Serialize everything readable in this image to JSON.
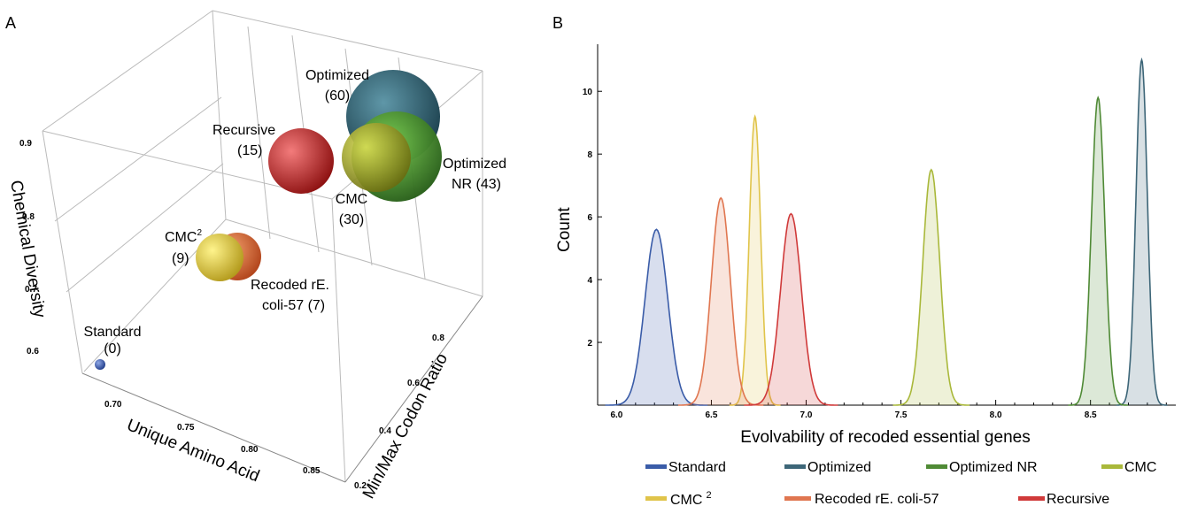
{
  "chart_data": [
    {
      "panel": "A",
      "type": "scatter",
      "subtype": "3d-bubble",
      "xlabel": "Unique Amino Acid",
      "ylabel": "Min/Max Codon Ratio",
      "zlabel": "Chemical Diversity",
      "x_ticks": [
        "0.70",
        "0.75",
        "0.80",
        "0.85"
      ],
      "y_ticks": [
        "0.2",
        "0.4",
        "0.6",
        "0.8"
      ],
      "z_ticks": [
        "0.6",
        "0.7",
        "0.8",
        "0.9"
      ],
      "points": [
        {
          "label": "Standard (0)",
          "label_lines": [
            "Standard",
            "(0)"
          ],
          "value": 0,
          "color": "#3355aa"
        },
        {
          "label": "CMC2 (9)",
          "label_lines": [
            "CMC",
            "(9)"
          ],
          "value": 9,
          "color": "#e8d44a"
        },
        {
          "label": "Recoded rE. coli-57 (7)",
          "label_lines": [
            "Recoded rE.",
            "coli-57 (7)"
          ],
          "value": 7,
          "color": "#e06a3c"
        },
        {
          "label": "Recursive (15)",
          "label_lines": [
            "Recursive",
            "(15)"
          ],
          "value": 15,
          "color": "#d42b2b"
        },
        {
          "label": "CMC (30)",
          "label_lines": [
            "CMC",
            "(30)"
          ],
          "value": 30,
          "color": "#b3b82c"
        },
        {
          "label": "Optimized (60)",
          "label_lines": [
            "Optimized",
            "(60)"
          ],
          "value": 60,
          "color": "#2f5f6e"
        },
        {
          "label": "Optimized NR (43)",
          "label_lines": [
            "Optimized",
            "NR (43)"
          ],
          "value": 43,
          "color": "#4a8f30"
        }
      ]
    },
    {
      "panel": "B",
      "type": "area",
      "subtype": "density",
      "xlabel": "Evolvability of recoded essential genes",
      "ylabel": "Count",
      "xlim": [
        5.9,
        8.95
      ],
      "ylim": [
        0,
        11.5
      ],
      "x_ticks": [
        "6.0",
        "6.5",
        "7.0",
        "7.5",
        "8.0",
        "8.5"
      ],
      "y_ticks": [
        "2",
        "4",
        "6",
        "8",
        "10"
      ],
      "series": [
        {
          "name": "Standard",
          "color": "#3a5ca8",
          "peak_x": 6.21,
          "peak": 5.6,
          "width": 0.06
        },
        {
          "name": "Optimized",
          "color": "#3d6678",
          "peak_x": 8.77,
          "peak": 11.0,
          "width": 0.03
        },
        {
          "name": "Optimized NR",
          "color": "#4f8a35",
          "peak_x": 8.54,
          "peak": 9.8,
          "width": 0.035
        },
        {
          "name": "CMC",
          "color": "#a9b83a",
          "peak_x": 7.66,
          "peak": 7.5,
          "width": 0.045
        },
        {
          "name": "CMC 2",
          "color": "#e0c44a",
          "peak_x": 6.73,
          "peak": 9.2,
          "width": 0.03
        },
        {
          "name": "Recoded rE. coli-57",
          "color": "#e07650",
          "peak_x": 6.55,
          "peak": 6.6,
          "width": 0.05
        },
        {
          "name": "Recursive",
          "color": "#d03a3a",
          "peak_x": 6.92,
          "peak": 6.1,
          "width": 0.055
        }
      ]
    }
  ],
  "panels": {
    "a_label": "A",
    "b_label": "B"
  },
  "legend": {
    "row1": [
      "Standard",
      "Optimized",
      "Optimized NR",
      "CMC"
    ],
    "row2_cmc2_base": "CMC",
    "row2_cmc2_sup": "2",
    "row2": [
      "Recoded rE. coli-57",
      "Recursive"
    ]
  },
  "superscript": "2"
}
